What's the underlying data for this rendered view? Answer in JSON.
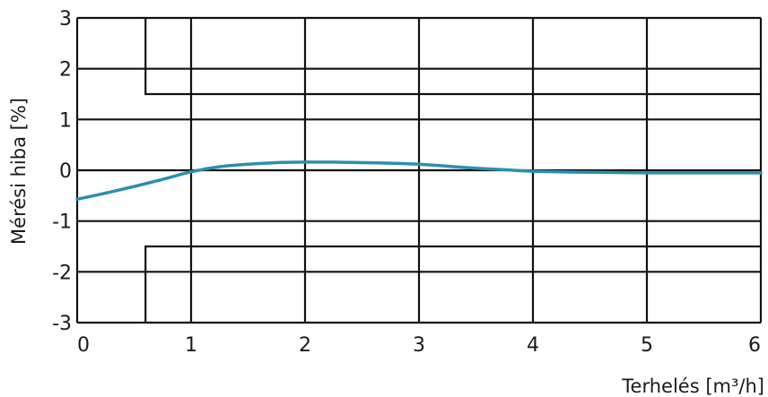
{
  "chart_data": {
    "type": "line",
    "title": "",
    "xlabel": "Terhelés [m³/h]",
    "ylabel": "Mérési hiba [%]",
    "xlim": [
      0,
      6
    ],
    "ylim": [
      -3,
      3
    ],
    "x_ticks": [
      0,
      1,
      2,
      3,
      4,
      5,
      6
    ],
    "y_ticks": [
      -3,
      -2,
      -1,
      0,
      1,
      2,
      3
    ],
    "x_tick_labels": [
      "0",
      "1",
      "2",
      "3",
      "4",
      "5",
      "6"
    ],
    "y_tick_labels": [
      "-3",
      "-2",
      "-1",
      "0",
      "1",
      "2",
      "3"
    ],
    "grid": true,
    "error_limits": {
      "upper": [
        [
          0.6,
          3
        ],
        [
          0.6,
          1.5
        ],
        [
          6,
          1.5
        ]
      ],
      "lower": [
        [
          0.6,
          -3
        ],
        [
          0.6,
          -1.5
        ],
        [
          6,
          -1.5
        ]
      ]
    },
    "series": [
      {
        "color": "#2a8fb0",
        "x": [
          0,
          0.25,
          0.5,
          0.75,
          1.0,
          1.25,
          1.5,
          1.75,
          2.0,
          2.25,
          2.5,
          2.75,
          3.0,
          3.25,
          3.5,
          3.75,
          4.0,
          4.5,
          5.0,
          5.5,
          6.0
        ],
        "y": [
          -0.57,
          -0.45,
          -0.32,
          -0.18,
          -0.03,
          0.07,
          0.12,
          0.15,
          0.16,
          0.16,
          0.15,
          0.14,
          0.12,
          0.08,
          0.04,
          0.01,
          -0.02,
          -0.04,
          -0.05,
          -0.05,
          -0.05
        ]
      }
    ]
  }
}
